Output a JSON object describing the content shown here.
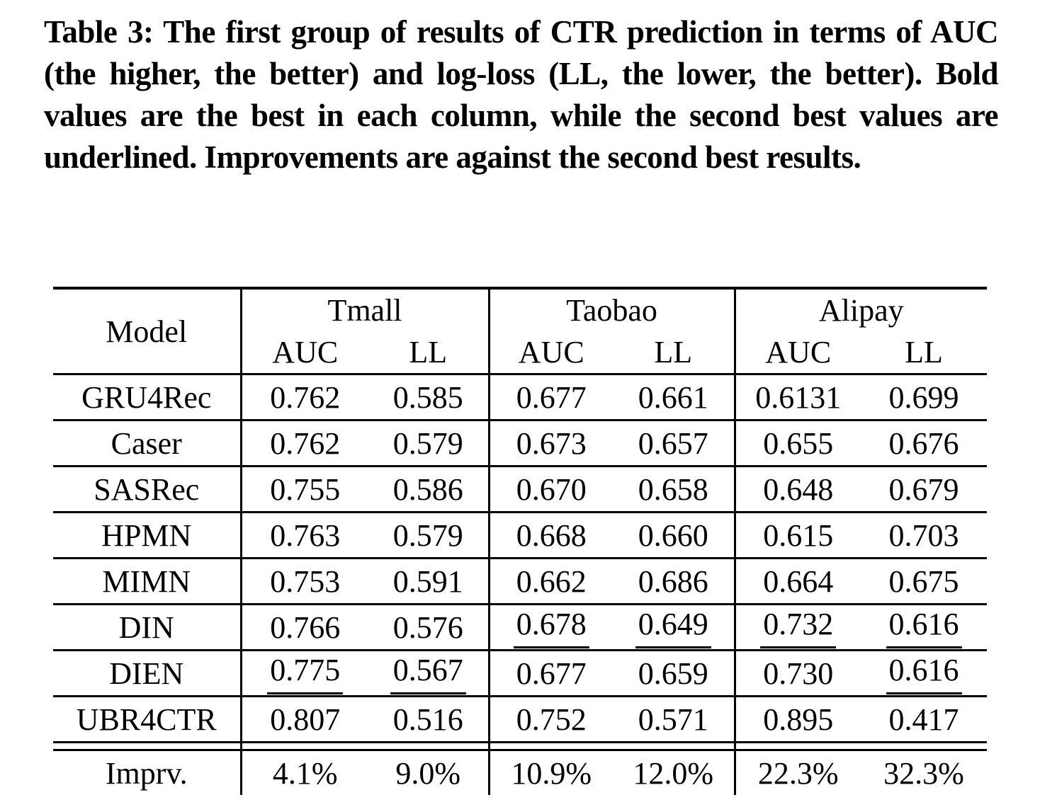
{
  "caption": "Table 3: The first group of results of CTR prediction in terms of AUC (the higher, the better) and log-loss (LL, the lower, the better). Bold values are the best in each column, while the second best values are underlined. Improvements are against the second best results.",
  "colors": {
    "text": "#000000",
    "background": "#ffffff",
    "rule": "#000000"
  },
  "table": {
    "corner_label": "Model",
    "groups": [
      {
        "label": "Tmall"
      },
      {
        "label": "Taobao"
      },
      {
        "label": "Alipay"
      }
    ],
    "metric_labels": [
      "AUC",
      "LL",
      "AUC",
      "LL",
      "AUC",
      "LL"
    ],
    "rows": [
      {
        "model": "GRU4Rec",
        "cells": [
          {
            "value": "0.762",
            "style": "normal"
          },
          {
            "value": "0.585",
            "style": "normal"
          },
          {
            "value": "0.677",
            "style": "normal"
          },
          {
            "value": "0.661",
            "style": "normal"
          },
          {
            "value": "0.6131",
            "style": "normal"
          },
          {
            "value": "0.699",
            "style": "normal"
          }
        ]
      },
      {
        "model": "Caser",
        "cells": [
          {
            "value": "0.762",
            "style": "normal"
          },
          {
            "value": "0.579",
            "style": "normal"
          },
          {
            "value": "0.673",
            "style": "normal"
          },
          {
            "value": "0.657",
            "style": "normal"
          },
          {
            "value": "0.655",
            "style": "normal"
          },
          {
            "value": "0.676",
            "style": "normal"
          }
        ]
      },
      {
        "model": "SASRec",
        "cells": [
          {
            "value": "0.755",
            "style": "normal"
          },
          {
            "value": "0.586",
            "style": "normal"
          },
          {
            "value": "0.670",
            "style": "normal"
          },
          {
            "value": "0.658",
            "style": "normal"
          },
          {
            "value": "0.648",
            "style": "normal"
          },
          {
            "value": "0.679",
            "style": "normal"
          }
        ]
      },
      {
        "model": "HPMN",
        "cells": [
          {
            "value": "0.763",
            "style": "normal"
          },
          {
            "value": "0.579",
            "style": "normal"
          },
          {
            "value": "0.668",
            "style": "normal"
          },
          {
            "value": "0.660",
            "style": "normal"
          },
          {
            "value": "0.615",
            "style": "normal"
          },
          {
            "value": "0.703",
            "style": "normal"
          }
        ]
      },
      {
        "model": "MIMN",
        "cells": [
          {
            "value": "0.753",
            "style": "normal"
          },
          {
            "value": "0.591",
            "style": "normal"
          },
          {
            "value": "0.662",
            "style": "normal"
          },
          {
            "value": "0.686",
            "style": "normal"
          },
          {
            "value": "0.664",
            "style": "normal"
          },
          {
            "value": "0.675",
            "style": "normal"
          }
        ]
      },
      {
        "model": "DIN",
        "cells": [
          {
            "value": "0.766",
            "style": "normal"
          },
          {
            "value": "0.576",
            "style": "normal"
          },
          {
            "value": "0.678",
            "style": "underline"
          },
          {
            "value": "0.649",
            "style": "underline"
          },
          {
            "value": "0.732",
            "style": "underline"
          },
          {
            "value": "0.616",
            "style": "underline"
          }
        ]
      },
      {
        "model": "DIEN",
        "cells": [
          {
            "value": "0.775",
            "style": "underline"
          },
          {
            "value": "0.567",
            "style": "underline"
          },
          {
            "value": "0.677",
            "style": "normal"
          },
          {
            "value": "0.659",
            "style": "normal"
          },
          {
            "value": "0.730",
            "style": "normal"
          },
          {
            "value": "0.616",
            "style": "underline"
          }
        ]
      },
      {
        "model": "UBR4CTR",
        "cells": [
          {
            "value": "0.807",
            "style": "bold"
          },
          {
            "value": "0.516",
            "style": "bold"
          },
          {
            "value": "0.752",
            "style": "bold"
          },
          {
            "value": "0.571",
            "style": "bold"
          },
          {
            "value": "0.895",
            "style": "bold"
          },
          {
            "value": "0.417",
            "style": "bold"
          }
        ]
      }
    ],
    "improvement": {
      "label": "Imprv.",
      "cells": [
        "4.1%",
        "9.0%",
        "10.9%",
        "12.0%",
        "22.3%",
        "32.3%"
      ]
    }
  }
}
